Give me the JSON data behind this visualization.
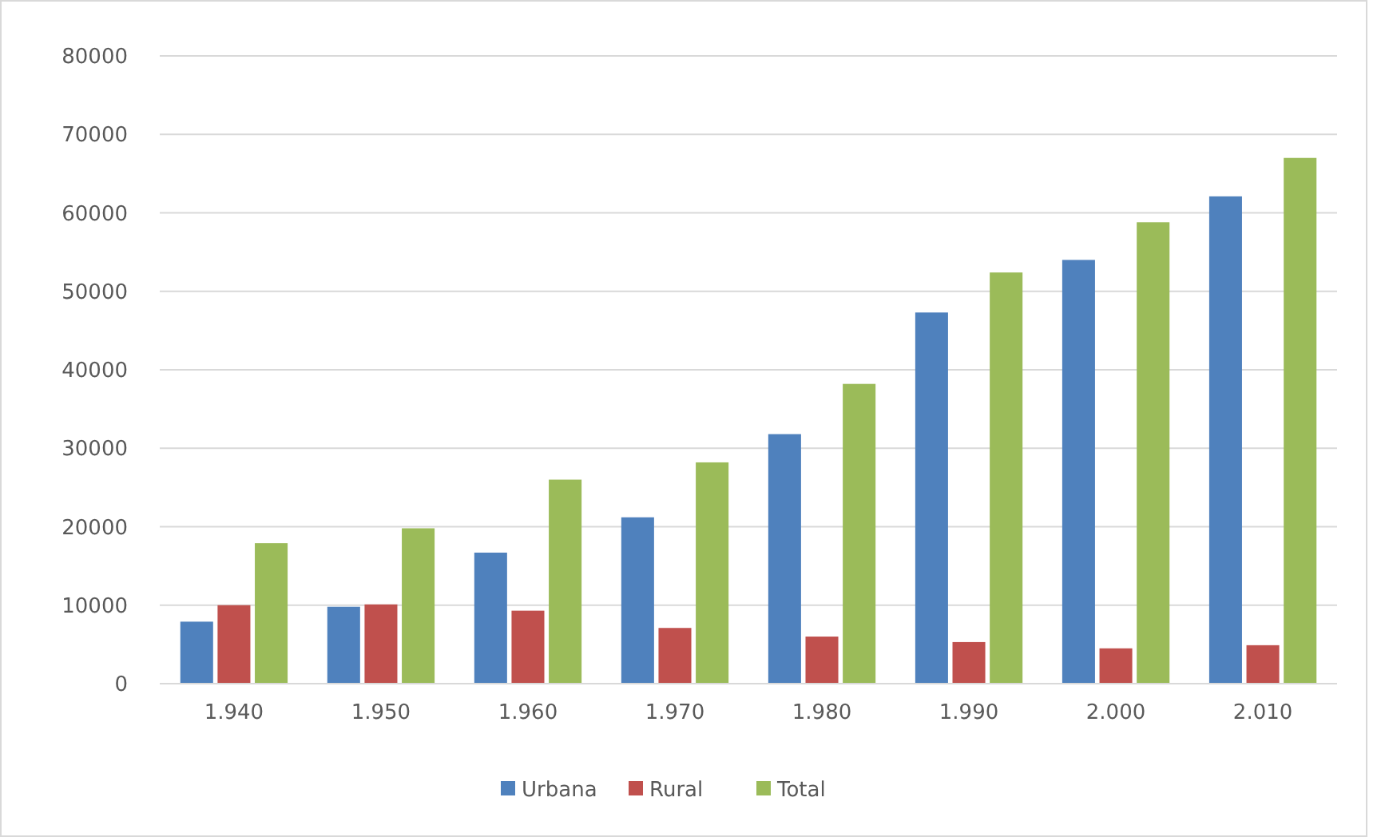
{
  "chart_data": {
    "type": "bar",
    "categories": [
      "1.940",
      "1.950",
      "1.960",
      "1.970",
      "1.980",
      "1.990",
      "2.000",
      "2.010"
    ],
    "series": [
      {
        "name": "Urbana",
        "color": "#4f81bd",
        "values": [
          7900,
          9800,
          16700,
          21200,
          31800,
          47300,
          54000,
          62100
        ]
      },
      {
        "name": "Rural",
        "color": "#c0504d",
        "values": [
          10000,
          10100,
          9300,
          7100,
          6000,
          5300,
          4500,
          4900
        ]
      },
      {
        "name": "Total",
        "color": "#9bbb59",
        "values": [
          17900,
          19800,
          26000,
          28200,
          38200,
          52400,
          58800,
          67000
        ]
      }
    ],
    "ylim": [
      0,
      80000
    ],
    "yticks": [
      0,
      10000,
      20000,
      30000,
      40000,
      50000,
      60000,
      70000,
      80000
    ],
    "grid": "y",
    "legend": "bottom"
  }
}
